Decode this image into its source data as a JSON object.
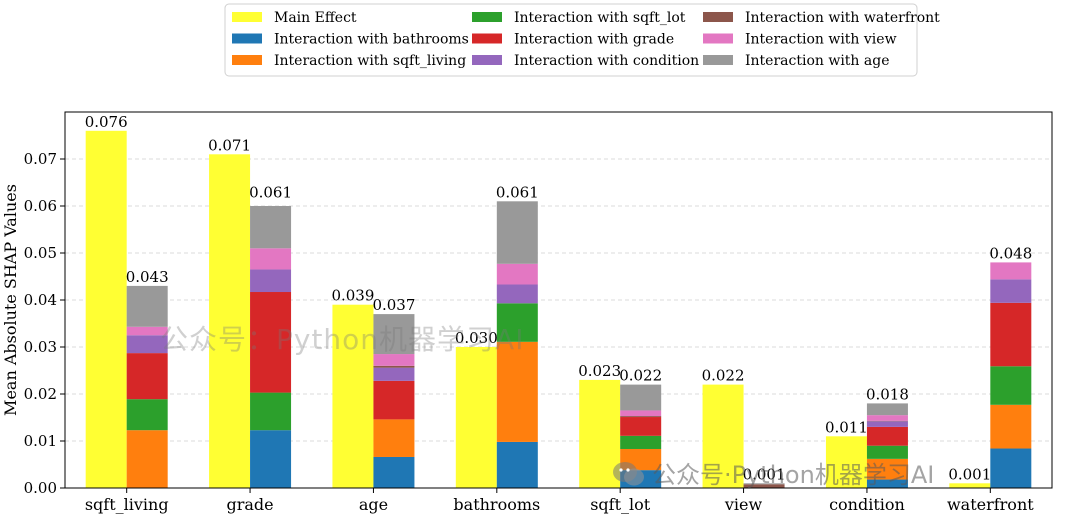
{
  "chart_data": {
    "type": "stacked-bar",
    "ylabel": "Mean Absolute SHAP Values",
    "ylim": [
      0,
      0.08
    ],
    "yticks": [
      "0.00",
      "0.01",
      "0.02",
      "0.03",
      "0.04",
      "0.05",
      "0.06",
      "0.07"
    ],
    "grid": "horizontal-dashed",
    "legend_position": "top-center",
    "categories": [
      "sqft_living",
      "grade",
      "age",
      "bathrooms",
      "sqft_lot",
      "view",
      "condition",
      "waterfront"
    ],
    "main_effect": {
      "name": "Main Effect",
      "color": "#ffff33",
      "values": [
        0.076,
        0.071,
        0.039,
        0.03,
        0.023,
        0.022,
        0.011,
        0.001
      ],
      "labels": [
        "0.076",
        "0.071",
        "0.039",
        "0.030",
        "0.023",
        "0.022",
        "0.011",
        "0.001"
      ]
    },
    "interaction_totals_labels": [
      "0.043",
      "0.061",
      "0.037",
      "0.061",
      "0.022",
      "0.001",
      "0.018",
      "0.048"
    ],
    "interaction_series": [
      {
        "name": "Interaction with bathrooms",
        "color": "#1f77b4",
        "values": [
          0,
          0.0123,
          0.0066,
          0.0098,
          0.0038,
          0,
          0.0018,
          0.0084
        ]
      },
      {
        "name": "Interaction with sqft_living",
        "color": "#ff7f0e",
        "values": [
          0.0123,
          0,
          0.008,
          0.0213,
          0.0045,
          0,
          0.0044,
          0.0093
        ]
      },
      {
        "name": "Interaction with sqft_lot",
        "color": "#2ca02c",
        "values": [
          0.0066,
          0.008,
          0,
          0.0082,
          0.0028,
          0,
          0.0028,
          0.0082
        ]
      },
      {
        "name": "Interaction with grade",
        "color": "#d62728",
        "values": [
          0.0098,
          0.0214,
          0.0082,
          0,
          0.004,
          0,
          0.004,
          0.0135
        ]
      },
      {
        "name": "Interaction with condition",
        "color": "#9467bd",
        "values": [
          0.0038,
          0.0048,
          0.0028,
          0.004,
          0,
          0,
          0.0012,
          0.005
        ]
      },
      {
        "name": "Interaction with waterfront",
        "color": "#8c564b",
        "values": [
          0,
          0,
          0.0004,
          0,
          0.0002,
          0.0008,
          0.0001,
          0
        ]
      },
      {
        "name": "Interaction with view",
        "color": "#e377c2",
        "values": [
          0.0018,
          0.0045,
          0.0025,
          0.0044,
          0.0012,
          0,
          0.0012,
          0.0036
        ]
      },
      {
        "name": "Interaction with age",
        "color": "#999999",
        "values": [
          0.0087,
          0.009,
          0.0085,
          0.0133,
          0.0055,
          0.0002,
          0.0025,
          0
        ]
      }
    ]
  },
  "watermarks": {
    "center": "公众号：Python机器学习AI",
    "bottom": "公众号·Python机器学习AI"
  }
}
